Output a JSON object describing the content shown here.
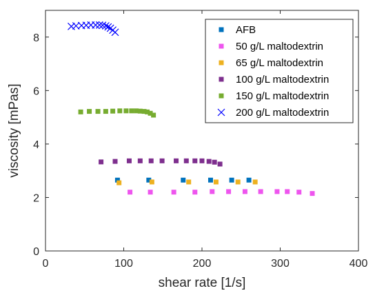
{
  "chart_data": {
    "type": "scatter",
    "title": "",
    "xlabel": "shear rate [1/s]",
    "ylabel": "viscosity [mPas]",
    "xlim": [
      0,
      400
    ],
    "ylim": [
      0,
      9
    ],
    "xticks": [
      0,
      100,
      200,
      300,
      400
    ],
    "yticks": [
      0,
      2,
      4,
      6,
      8
    ],
    "xtick_labels": [
      "0",
      "100",
      "200",
      "300",
      "400"
    ],
    "ytick_labels": [
      "0",
      "2",
      "4",
      "6",
      "8"
    ],
    "grid": false,
    "legend_position": "top-right",
    "series": [
      {
        "name": "AFB",
        "marker": "square",
        "color": "#0072BD",
        "x": [
          92,
          132,
          176,
          211,
          238,
          260
        ],
        "y": [
          2.65,
          2.65,
          2.65,
          2.65,
          2.65,
          2.65
        ]
      },
      {
        "name": "50 g/L maltodextrin",
        "marker": "square",
        "color": "#EE55EE",
        "x": [
          108,
          134,
          164,
          191,
          213,
          234,
          255,
          275,
          296,
          309,
          324,
          341
        ],
        "y": [
          2.2,
          2.2,
          2.2,
          2.2,
          2.22,
          2.22,
          2.22,
          2.22,
          2.22,
          2.22,
          2.2,
          2.15
        ]
      },
      {
        "name": "65 g/L maltodextrin",
        "marker": "square",
        "color": "#EDB120",
        "x": [
          94,
          136,
          183,
          218,
          246,
          268
        ],
        "y": [
          2.55,
          2.58,
          2.58,
          2.58,
          2.58,
          2.58
        ]
      },
      {
        "name": "100 g/L maltodextrin",
        "marker": "square",
        "color": "#7E2F8E",
        "x": [
          71,
          89,
          107,
          121,
          135,
          149,
          167,
          180,
          191,
          200,
          209,
          216,
          223
        ],
        "y": [
          3.33,
          3.35,
          3.37,
          3.37,
          3.37,
          3.37,
          3.37,
          3.37,
          3.37,
          3.37,
          3.35,
          3.32,
          3.25
        ]
      },
      {
        "name": "150 g/L maltodextrin",
        "marker": "square",
        "color": "#77AC30",
        "x": [
          45,
          56,
          67,
          77,
          86,
          95,
          103,
          110,
          116,
          121,
          126,
          130,
          134,
          138
        ],
        "y": [
          5.2,
          5.22,
          5.22,
          5.22,
          5.23,
          5.24,
          5.24,
          5.24,
          5.24,
          5.23,
          5.22,
          5.2,
          5.15,
          5.08
        ]
      },
      {
        "name": "200 g/L maltodextrin",
        "marker": "x",
        "color": "#0000FF",
        "x": [
          33,
          39,
          46,
          52,
          58,
          64,
          69,
          73,
          77,
          80,
          83,
          86,
          89
        ],
        "y": [
          8.4,
          8.42,
          8.43,
          8.44,
          8.45,
          8.45,
          8.45,
          8.44,
          8.42,
          8.38,
          8.33,
          8.26,
          8.18
        ]
      }
    ]
  }
}
